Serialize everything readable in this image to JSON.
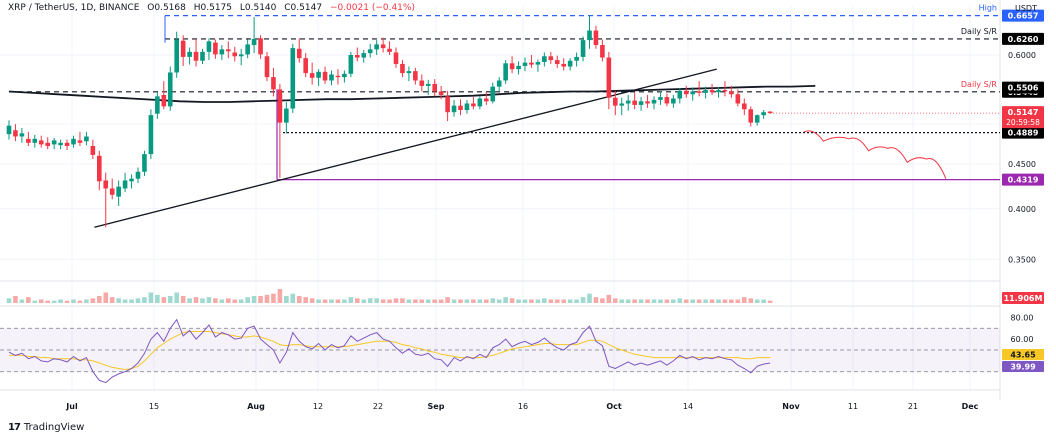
{
  "header": {
    "symbol": "XRP / TetherUS, 1D, BINANCE",
    "open": "O0.5168",
    "high": "H0.5175",
    "low": "L0.5140",
    "close": "C0.5147",
    "change": "−0.0021 (−0.41%)"
  },
  "footer": {
    "brand": "TradingView",
    "logo": "17"
  },
  "axis_unit": "USDT",
  "colors": {
    "up": "#089981",
    "down": "#f23645",
    "purple": "#9c27b0",
    "rsi": "#7e57c2",
    "rsi_ma": "#f7c825",
    "sma": "#131722",
    "badge": "#000000",
    "blue": "#2962ff"
  },
  "chart_data": [
    {
      "type": "candlestick",
      "yscale": "log",
      "ylim": [
        0.335,
        0.665
      ],
      "y_ticks": [
        "0.6000",
        "0.5506",
        "0.5445",
        "0.5000",
        "0.4889",
        "0.4500",
        "0.4319",
        "0.4000",
        "0.3500"
      ],
      "x_ticks": [
        "Jul",
        "15",
        "Aug",
        "12",
        "22",
        "Sep",
        "16",
        "Oct",
        "14",
        "Nov",
        "11",
        "21",
        "Dec"
      ],
      "candles": [
        [
          0.487,
          0.505,
          0.48,
          0.498
        ],
        [
          0.492,
          0.5,
          0.478,
          0.484
        ],
        [
          0.484,
          0.495,
          0.476,
          0.488
        ],
        [
          0.481,
          0.49,
          0.472,
          0.476
        ],
        [
          0.476,
          0.486,
          0.47,
          0.481
        ],
        [
          0.479,
          0.485,
          0.47,
          0.474
        ],
        [
          0.476,
          0.483,
          0.468,
          0.472
        ],
        [
          0.474,
          0.482,
          0.468,
          0.479
        ],
        [
          0.473,
          0.48,
          0.468,
          0.476
        ],
        [
          0.476,
          0.48,
          0.467,
          0.472
        ],
        [
          0.474,
          0.485,
          0.47,
          0.481
        ],
        [
          0.479,
          0.49,
          0.472,
          0.476
        ],
        [
          0.478,
          0.49,
          0.473,
          0.484
        ],
        [
          0.472,
          0.48,
          0.456,
          0.461
        ],
        [
          0.46,
          0.466,
          0.42,
          0.43
        ],
        [
          0.431,
          0.44,
          0.381,
          0.422
        ],
        [
          0.422,
          0.433,
          0.41,
          0.415
        ],
        [
          0.413,
          0.431,
          0.403,
          0.424
        ],
        [
          0.422,
          0.44,
          0.418,
          0.431
        ],
        [
          0.43,
          0.438,
          0.422,
          0.433
        ],
        [
          0.433,
          0.446,
          0.428,
          0.441
        ],
        [
          0.441,
          0.466,
          0.436,
          0.462
        ],
        [
          0.462,
          0.52,
          0.456,
          0.512
        ],
        [
          0.514,
          0.544,
          0.507,
          0.538
        ],
        [
          0.54,
          0.56,
          0.52,
          0.524
        ],
        [
          0.524,
          0.582,
          0.518,
          0.573
        ],
        [
          0.573,
          0.638,
          0.565,
          0.625
        ],
        [
          0.623,
          0.632,
          0.583,
          0.597
        ],
        [
          0.597,
          0.612,
          0.585,
          0.605
        ],
        [
          0.605,
          0.626,
          0.582,
          0.591
        ],
        [
          0.591,
          0.61,
          0.586,
          0.605
        ],
        [
          0.605,
          0.627,
          0.592,
          0.622
        ],
        [
          0.62,
          0.625,
          0.594,
          0.601
        ],
        [
          0.601,
          0.616,
          0.592,
          0.609
        ],
        [
          0.609,
          0.622,
          0.595,
          0.606
        ],
        [
          0.604,
          0.613,
          0.59,
          0.598
        ],
        [
          0.598,
          0.61,
          0.584,
          0.601
        ],
        [
          0.601,
          0.625,
          0.595,
          0.617
        ],
        [
          0.616,
          0.663,
          0.603,
          0.626
        ],
        [
          0.627,
          0.632,
          0.594,
          0.601
        ],
        [
          0.598,
          0.605,
          0.56,
          0.566
        ],
        [
          0.566,
          0.58,
          0.538,
          0.548
        ],
        [
          0.548,
          0.556,
          0.434,
          0.502
        ],
        [
          0.502,
          0.53,
          0.488,
          0.521
        ],
        [
          0.521,
          0.618,
          0.515,
          0.611
        ],
        [
          0.61,
          0.627,
          0.588,
          0.595
        ],
        [
          0.595,
          0.603,
          0.566,
          0.572
        ],
        [
          0.572,
          0.588,
          0.555,
          0.565
        ],
        [
          0.565,
          0.578,
          0.553,
          0.574
        ],
        [
          0.574,
          0.582,
          0.556,
          0.561
        ],
        [
          0.561,
          0.576,
          0.554,
          0.57
        ],
        [
          0.568,
          0.578,
          0.555,
          0.566
        ],
        [
          0.566,
          0.576,
          0.558,
          0.571
        ],
        [
          0.571,
          0.605,
          0.566,
          0.6
        ],
        [
          0.6,
          0.612,
          0.59,
          0.596
        ],
        [
          0.596,
          0.608,
          0.588,
          0.603
        ],
        [
          0.603,
          0.618,
          0.596,
          0.609
        ],
        [
          0.609,
          0.624,
          0.6,
          0.617
        ],
        [
          0.617,
          0.628,
          0.604,
          0.611
        ],
        [
          0.61,
          0.622,
          0.6,
          0.605
        ],
        [
          0.604,
          0.612,
          0.58,
          0.586
        ],
        [
          0.586,
          0.592,
          0.566,
          0.572
        ],
        [
          0.572,
          0.582,
          0.56,
          0.575
        ],
        [
          0.575,
          0.58,
          0.555,
          0.561
        ],
        [
          0.561,
          0.57,
          0.545,
          0.553
        ],
        [
          0.553,
          0.562,
          0.54,
          0.556
        ],
        [
          0.556,
          0.563,
          0.538,
          0.545
        ],
        [
          0.545,
          0.553,
          0.534,
          0.54
        ],
        [
          0.538,
          0.546,
          0.504,
          0.516
        ],
        [
          0.516,
          0.533,
          0.51,
          0.525
        ],
        [
          0.525,
          0.534,
          0.512,
          0.519
        ],
        [
          0.519,
          0.533,
          0.514,
          0.528
        ],
        [
          0.528,
          0.537,
          0.52,
          0.524
        ],
        [
          0.524,
          0.538,
          0.52,
          0.535
        ],
        [
          0.535,
          0.544,
          0.526,
          0.531
        ],
        [
          0.531,
          0.558,
          0.528,
          0.552
        ],
        [
          0.552,
          0.566,
          0.545,
          0.561
        ],
        [
          0.561,
          0.592,
          0.556,
          0.587
        ],
        [
          0.587,
          0.598,
          0.572,
          0.578
        ],
        [
          0.578,
          0.59,
          0.57,
          0.583
        ],
        [
          0.583,
          0.596,
          0.575,
          0.588
        ],
        [
          0.588,
          0.6,
          0.58,
          0.585
        ],
        [
          0.585,
          0.593,
          0.574,
          0.589
        ],
        [
          0.589,
          0.604,
          0.582,
          0.598
        ],
        [
          0.598,
          0.605,
          0.586,
          0.592
        ],
        [
          0.592,
          0.599,
          0.58,
          0.586
        ],
        [
          0.586,
          0.595,
          0.576,
          0.582
        ],
        [
          0.582,
          0.595,
          0.576,
          0.591
        ],
        [
          0.591,
          0.604,
          0.582,
          0.597
        ],
        [
          0.597,
          0.63,
          0.59,
          0.624
        ],
        [
          0.624,
          0.666,
          0.61,
          0.64
        ],
        [
          0.64,
          0.648,
          0.61,
          0.616
        ],
        [
          0.616,
          0.625,
          0.59,
          0.596
        ],
        [
          0.596,
          0.605,
          0.52,
          0.536
        ],
        [
          0.536,
          0.546,
          0.512,
          0.525
        ],
        [
          0.525,
          0.536,
          0.512,
          0.528
        ],
        [
          0.528,
          0.54,
          0.518,
          0.532
        ],
        [
          0.532,
          0.544,
          0.52,
          0.526
        ],
        [
          0.526,
          0.537,
          0.518,
          0.531
        ],
        [
          0.531,
          0.54,
          0.522,
          0.528
        ],
        [
          0.528,
          0.538,
          0.52,
          0.533
        ],
        [
          0.533,
          0.545,
          0.526,
          0.537
        ],
        [
          0.537,
          0.542,
          0.524,
          0.528
        ],
        [
          0.528,
          0.54,
          0.522,
          0.535
        ],
        [
          0.535,
          0.55,
          0.528,
          0.546
        ],
        [
          0.546,
          0.553,
          0.536,
          0.541
        ],
        [
          0.541,
          0.551,
          0.532,
          0.545
        ],
        [
          0.545,
          0.56,
          0.538,
          0.543
        ],
        [
          0.543,
          0.552,
          0.535,
          0.547
        ],
        [
          0.547,
          0.556,
          0.54,
          0.544
        ],
        [
          0.544,
          0.551,
          0.536,
          0.547
        ],
        [
          0.547,
          0.56,
          0.538,
          0.545
        ],
        [
          0.545,
          0.553,
          0.536,
          0.541
        ],
        [
          0.541,
          0.548,
          0.524,
          0.528
        ],
        [
          0.528,
          0.535,
          0.512,
          0.52
        ],
        [
          0.52,
          0.524,
          0.497,
          0.502
        ],
        [
          0.502,
          0.513,
          0.498,
          0.512
        ],
        [
          0.512,
          0.519,
          0.507,
          0.516
        ],
        [
          0.5168,
          0.5175,
          0.514,
          0.5147
        ]
      ],
      "volumes": [
        4,
        6,
        3,
        5,
        2,
        3,
        2,
        2,
        3,
        2,
        3,
        2,
        3,
        4,
        6,
        9,
        5,
        4,
        3,
        3,
        4,
        5,
        9,
        7,
        5,
        6,
        9,
        6,
        4,
        5,
        4,
        5,
        4,
        3,
        4,
        3,
        3,
        5,
        6,
        6,
        7,
        8,
        12,
        6,
        8,
        6,
        5,
        4,
        3,
        3,
        3,
        3,
        3,
        5,
        4,
        3,
        4,
        4,
        3,
        3,
        4,
        4,
        3,
        3,
        3,
        3,
        3,
        3,
        5,
        3,
        3,
        3,
        3,
        3,
        3,
        4,
        3,
        5,
        4,
        3,
        3,
        3,
        3,
        4,
        3,
        3,
        3,
        3,
        3,
        5,
        8,
        5,
        4,
        7,
        4,
        3,
        3,
        3,
        3,
        3,
        3,
        3,
        3,
        3,
        4,
        3,
        3,
        3,
        3,
        3,
        3,
        3,
        3,
        3,
        5,
        4,
        3,
        3,
        2
      ],
      "volume_label": "11.906M",
      "sma200": [
        0.545,
        0.543,
        0.541,
        0.539,
        0.537,
        0.535,
        0.533,
        0.531,
        0.53,
        0.53,
        0.531,
        0.532,
        0.533,
        0.534,
        0.534,
        0.535,
        0.536,
        0.537,
        0.538,
        0.539,
        0.541,
        0.543,
        0.544,
        0.545,
        0.545,
        0.546,
        0.547,
        0.548,
        0.549,
        0.55,
        0.551,
        0.552,
        0.552,
        0.553
      ],
      "trendline": {
        "from": {
          "x": 12,
          "y": 0.381
        },
        "to": {
          "x": 95,
          "y": 0.578
        }
      },
      "levels": [
        {
          "label": "High",
          "value": "0.6657",
          "y": 0.6657,
          "style": "dashed",
          "color": "#2962ff"
        },
        {
          "label": "Daily S/R",
          "value": "0.6260",
          "y": 0.626,
          "style": "dashed",
          "color": "#131722"
        },
        {
          "label": "Daily S/R",
          "value": "0.5445",
          "y": 0.5445,
          "style": "dashed",
          "color": "#131722"
        },
        {
          "label": "",
          "value": "0.4889",
          "y": 0.4889,
          "style": "dotted",
          "color": "#131722"
        },
        {
          "label": "",
          "value": "0.4319",
          "y": 0.4319,
          "style": "solid",
          "color": "#9c27b0"
        }
      ],
      "sma_label": "0.5506",
      "price_label": "0.5147",
      "countdown_label": "20:59:58",
      "projection": [
        [
          100,
          0.49
        ],
        [
          103,
          0.478
        ],
        [
          107,
          0.481
        ],
        [
          110,
          0.466
        ],
        [
          113,
          0.469
        ],
        [
          116,
          0.452
        ],
        [
          119,
          0.456
        ],
        [
          122,
          0.433
        ]
      ]
    },
    {
      "type": "line",
      "name": "RSI",
      "ylim": [
        15,
        85
      ],
      "y_ticks": [
        "80.00",
        "60.00"
      ],
      "band": [
        30,
        70
      ],
      "rsi": [
        48,
        45,
        47,
        42,
        44,
        40,
        39,
        42,
        41,
        39,
        44,
        40,
        43,
        30,
        22,
        20,
        25,
        28,
        30,
        33,
        38,
        47,
        60,
        66,
        58,
        70,
        78,
        63,
        68,
        60,
        66,
        73,
        62,
        66,
        64,
        60,
        61,
        70,
        72,
        60,
        55,
        50,
        38,
        48,
        66,
        58,
        53,
        51,
        56,
        50,
        55,
        52,
        54,
        63,
        58,
        61,
        64,
        66,
        60,
        58,
        52,
        47,
        51,
        46,
        45,
        47,
        42,
        41,
        35,
        43,
        40,
        44,
        42,
        46,
        43,
        52,
        55,
        60,
        53,
        56,
        58,
        55,
        57,
        61,
        56,
        52,
        50,
        55,
        57,
        66,
        72,
        58,
        54,
        35,
        33,
        36,
        39,
        36,
        38,
        36,
        38,
        40,
        36,
        40,
        45,
        42,
        44,
        41,
        43,
        42,
        44,
        42,
        41,
        36,
        33,
        29,
        35,
        37,
        38
      ],
      "rsi_ma": [
        45,
        45,
        45,
        44,
        44,
        43,
        43,
        42,
        42,
        42,
        42,
        41,
        41,
        40,
        38,
        36,
        34,
        33,
        32,
        33,
        35,
        40,
        46,
        52,
        56,
        60,
        63,
        66,
        67,
        67,
        67,
        67,
        66,
        65,
        64,
        63,
        62,
        62,
        63,
        62,
        60,
        58,
        55,
        54,
        55,
        55,
        54,
        53,
        53,
        53,
        53,
        53,
        53,
        54,
        55,
        56,
        57,
        58,
        58,
        58,
        57,
        55,
        54,
        52,
        51,
        49,
        48,
        46,
        45,
        44,
        43,
        43,
        43,
        43,
        44,
        45,
        47,
        49,
        51,
        52,
        53,
        54,
        55,
        56,
        56,
        55,
        55,
        55,
        55,
        57,
        59,
        59,
        58,
        55,
        52,
        50,
        48,
        46,
        45,
        44,
        43,
        43,
        43,
        43,
        43,
        43,
        43,
        43,
        43,
        43,
        43,
        43,
        43,
        43,
        42,
        42,
        43,
        43,
        43
      ],
      "labels": {
        "ma": "43.65",
        "rsi": "39.99"
      }
    }
  ]
}
